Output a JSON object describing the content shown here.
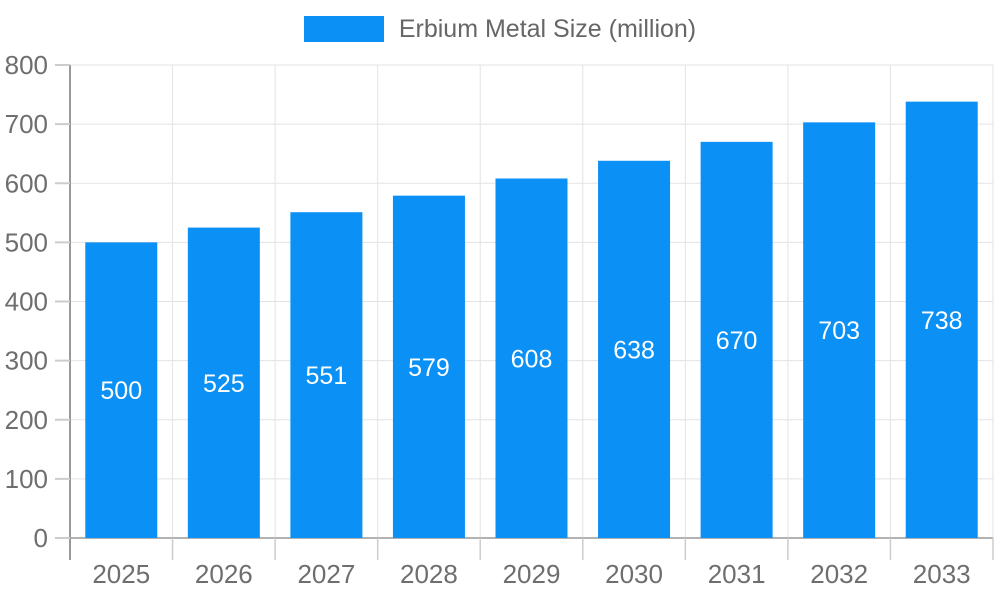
{
  "chart_data": {
    "type": "bar",
    "legend_label": "Erbium Metal Size (million)",
    "categories": [
      "2025",
      "2026",
      "2027",
      "2028",
      "2029",
      "2030",
      "2031",
      "2032",
      "2033"
    ],
    "values": [
      500,
      525,
      551,
      579,
      608,
      638,
      670,
      703,
      738
    ],
    "ylim": [
      0,
      800
    ],
    "yticks": [
      0,
      100,
      200,
      300,
      400,
      500,
      600,
      700,
      800
    ],
    "grid": true,
    "legend_position": "top",
    "bar_color": "#0b90f5",
    "value_label_color": "#ffffff",
    "axis_label_color": "#6e6e6e",
    "grid_color": "#e3e3e3",
    "axis_line_color": "#999999",
    "tick_color": "#cccccc"
  }
}
